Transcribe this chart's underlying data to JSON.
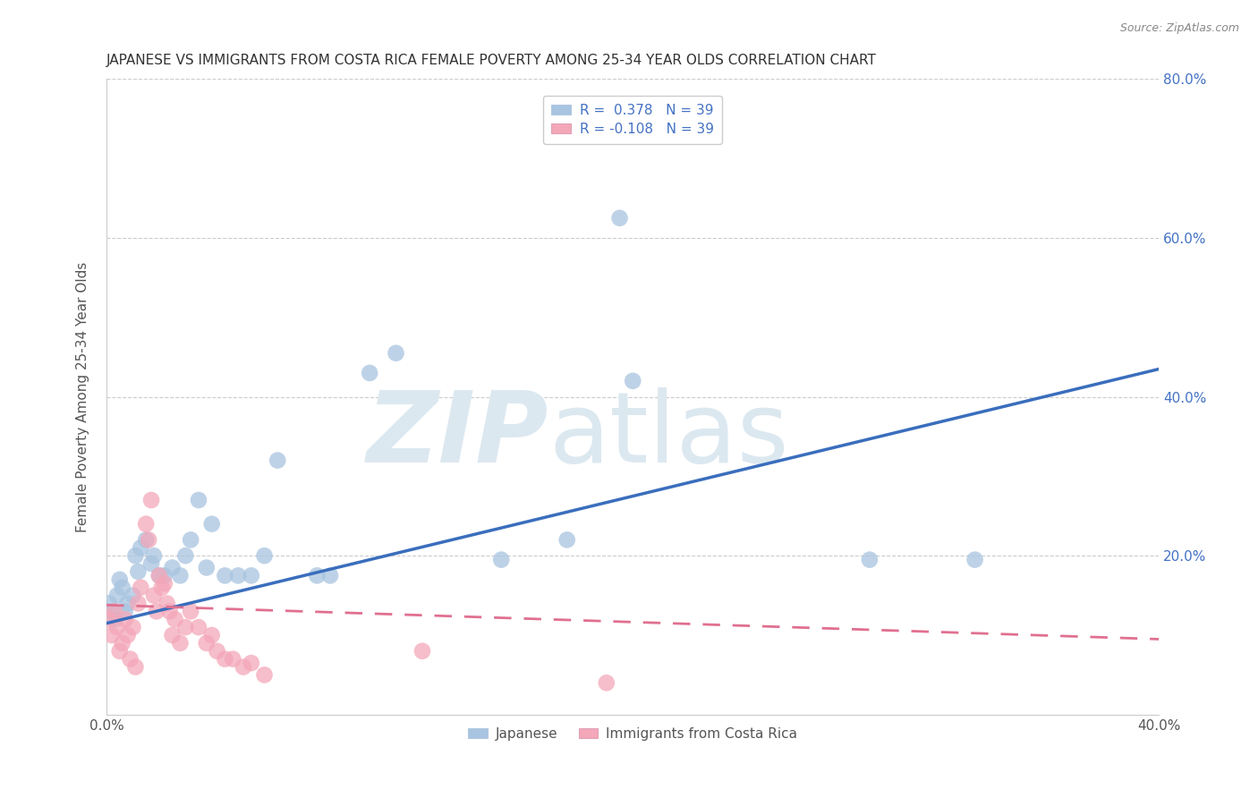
{
  "title": "JAPANESE VS IMMIGRANTS FROM COSTA RICA FEMALE POVERTY AMONG 25-34 YEAR OLDS CORRELATION CHART",
  "source": "Source: ZipAtlas.com",
  "ylabel": "Female Poverty Among 25-34 Year Olds",
  "xlim": [
    0.0,
    0.4
  ],
  "ylim": [
    0.0,
    0.8
  ],
  "xticks": [
    0.0,
    0.05,
    0.1,
    0.15,
    0.2,
    0.25,
    0.3,
    0.35,
    0.4
  ],
  "xticklabels": [
    "0.0%",
    "",
    "",
    "",
    "",
    "",
    "",
    "",
    "40.0%"
  ],
  "yticks": [
    0.0,
    0.2,
    0.4,
    0.6,
    0.8
  ],
  "yticklabels": [
    "",
    "20.0%",
    "40.0%",
    "60.0%",
    "80.0%"
  ],
  "r_japanese": 0.378,
  "n_japanese": 39,
  "r_costarica": -0.108,
  "n_costarica": 39,
  "japanese_color": "#a8c4e0",
  "costarica_color": "#f4a7b9",
  "japanese_line_color": "#3a6ebd",
  "costarica_line_color": "#e07090",
  "japanese_line_x0": 0.0,
  "japanese_line_y0": 0.115,
  "japanese_line_x1": 0.4,
  "japanese_line_y1": 0.435,
  "costarica_line_x0": 0.0,
  "costarica_line_y0": 0.138,
  "costarica_line_x1": 0.4,
  "costarica_line_y1": 0.095,
  "japanese_x": [
    0.001,
    0.002,
    0.003,
    0.004,
    0.005,
    0.006,
    0.007,
    0.008,
    0.01,
    0.011,
    0.012,
    0.013,
    0.015,
    0.017,
    0.018,
    0.02,
    0.022,
    0.025,
    0.028,
    0.03,
    0.032,
    0.035,
    0.038,
    0.04,
    0.045,
    0.05,
    0.055,
    0.06,
    0.065,
    0.08,
    0.085,
    0.1,
    0.11,
    0.15,
    0.175,
    0.195,
    0.2,
    0.29,
    0.33
  ],
  "japanese_y": [
    0.14,
    0.13,
    0.12,
    0.15,
    0.17,
    0.16,
    0.13,
    0.14,
    0.15,
    0.2,
    0.18,
    0.21,
    0.22,
    0.19,
    0.2,
    0.175,
    0.175,
    0.185,
    0.175,
    0.2,
    0.22,
    0.27,
    0.185,
    0.24,
    0.175,
    0.175,
    0.175,
    0.2,
    0.32,
    0.175,
    0.175,
    0.43,
    0.455,
    0.195,
    0.22,
    0.625,
    0.42,
    0.195,
    0.195
  ],
  "costarica_x": [
    0.001,
    0.002,
    0.003,
    0.004,
    0.005,
    0.006,
    0.007,
    0.008,
    0.009,
    0.01,
    0.011,
    0.012,
    0.013,
    0.015,
    0.016,
    0.017,
    0.018,
    0.019,
    0.02,
    0.021,
    0.022,
    0.023,
    0.024,
    0.025,
    0.026,
    0.028,
    0.03,
    0.032,
    0.035,
    0.038,
    0.04,
    0.042,
    0.045,
    0.048,
    0.052,
    0.055,
    0.06,
    0.12,
    0.19
  ],
  "costarica_y": [
    0.12,
    0.1,
    0.13,
    0.11,
    0.08,
    0.09,
    0.12,
    0.1,
    0.07,
    0.11,
    0.06,
    0.14,
    0.16,
    0.24,
    0.22,
    0.27,
    0.15,
    0.13,
    0.175,
    0.16,
    0.165,
    0.14,
    0.13,
    0.1,
    0.12,
    0.09,
    0.11,
    0.13,
    0.11,
    0.09,
    0.1,
    0.08,
    0.07,
    0.07,
    0.06,
    0.065,
    0.05,
    0.08,
    0.04
  ]
}
